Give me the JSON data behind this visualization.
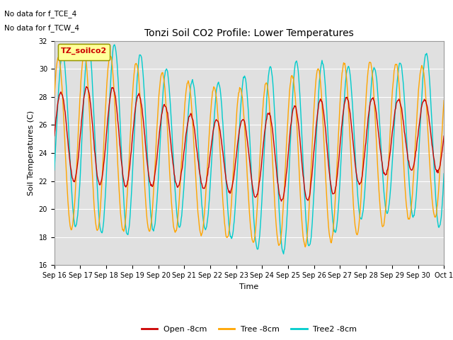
{
  "title": "Tonzi Soil CO2 Profile: Lower Temperatures",
  "ylabel": "Soil Temperatures (C)",
  "xlabel": "Time",
  "annotation1": "No data for f_TCE_4",
  "annotation2": "No data for f_TCW_4",
  "legend_label": "TZ_soilco2",
  "ylim": [
    16,
    32
  ],
  "yticks": [
    16,
    18,
    20,
    22,
    24,
    26,
    28,
    30,
    32
  ],
  "bg_color": "#e0e0e0",
  "line1_color": "#cc0000",
  "line2_color": "#ffa500",
  "line3_color": "#00cccc",
  "line1_label": "Open -8cm",
  "line2_label": "Tree -8cm",
  "line3_label": "Tree2 -8cm",
  "start_day": 16,
  "n_days": 15,
  "samples_per_day": 48,
  "title_fontsize": 10,
  "axis_fontsize": 8,
  "tick_fontsize": 7
}
